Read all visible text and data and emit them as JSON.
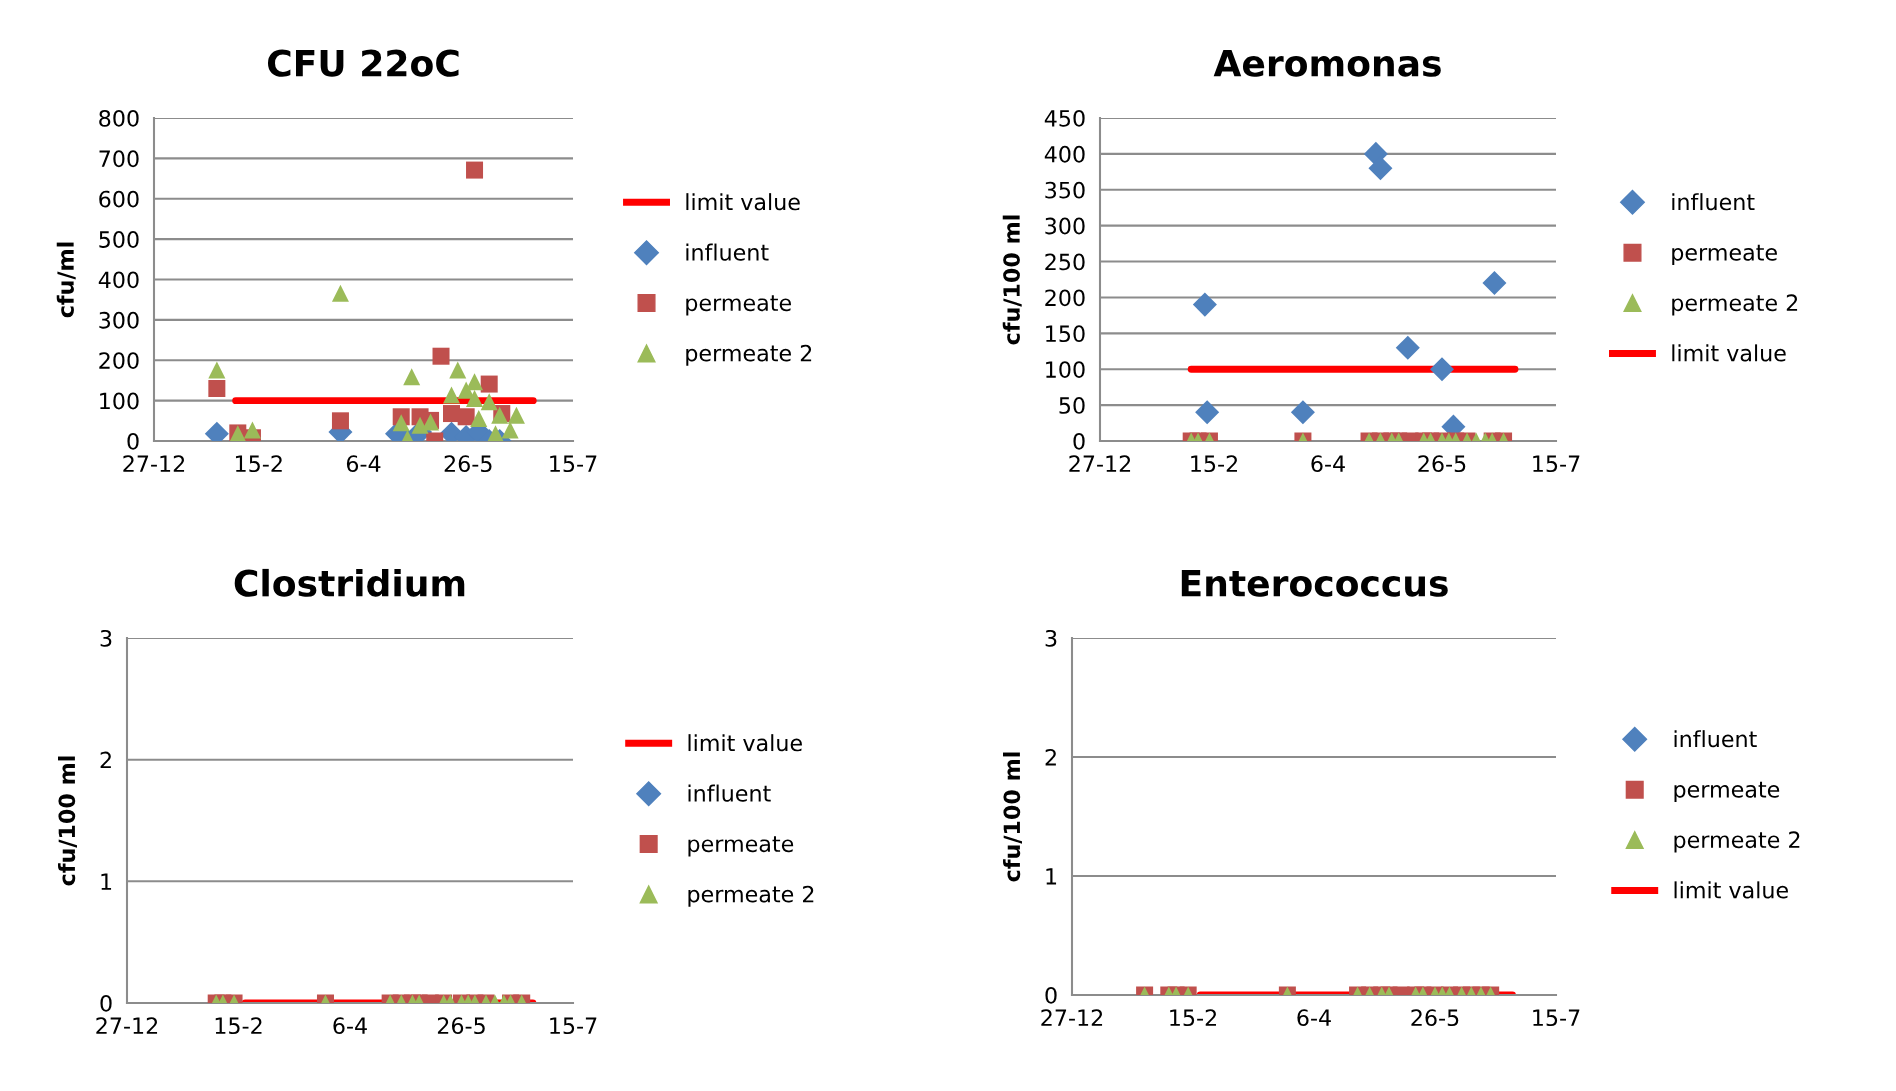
{
  "chart_data": [
    {
      "type": "scatter",
      "title": "CFU 22oC",
      "ylabel": "cfu/ml",
      "ylim": [
        0,
        800
      ],
      "yticks": [
        0,
        100,
        200,
        300,
        400,
        500,
        600,
        700,
        800
      ],
      "xlim": [
        "2012-12-27",
        "2013-07-15"
      ],
      "xticks": [
        {
          "value": "2012-12-27",
          "label": "27-12"
        },
        {
          "value": "2013-02-15",
          "label": "15-2"
        },
        {
          "value": "2013-04-06",
          "label": "6-4"
        },
        {
          "value": "2013-05-26",
          "label": "26-5"
        },
        {
          "value": "2013-07-15",
          "label": "15-7"
        }
      ],
      "grid": "y",
      "legend": "right",
      "series": [
        {
          "name": "limit value",
          "type": "line",
          "color": "#ff0000",
          "marker": "none",
          "x": [
            "2013-02-04",
            "2013-06-26"
          ],
          "values": [
            100,
            100
          ]
        },
        {
          "name": "influent",
          "color": "#4f81bd",
          "marker": "diamond",
          "x": [
            "2013-01-26",
            "2013-02-05",
            "2013-02-12",
            "2013-03-26",
            "2013-04-22",
            "2013-04-27",
            "2013-05-03",
            "2013-05-18",
            "2013-05-21",
            "2013-05-25",
            "2013-05-29",
            "2013-05-31",
            "2013-06-05",
            "2013-06-10"
          ],
          "values": [
            18,
            null,
            null,
            22,
            18,
            0,
            22,
            18,
            null,
            10,
            null,
            22,
            0,
            0
          ]
        },
        {
          "name": "permeate",
          "color": "#c0504d",
          "marker": "square",
          "x": [
            "2013-01-26",
            "2013-02-05",
            "2013-02-12",
            "2013-03-26",
            "2013-04-24",
            "2013-05-03",
            "2013-05-08",
            "2013-05-10",
            "2013-05-13",
            "2013-05-18",
            "2013-05-25",
            "2013-05-29",
            "2013-06-05",
            "2013-06-11"
          ],
          "values": [
            130,
            20,
            8,
            50,
            60,
            60,
            51,
            0,
            210,
            68,
            60,
            671,
            141,
            68
          ]
        },
        {
          "name": "permeate 2",
          "color": "#9bbb59",
          "marker": "triangle",
          "x": [
            "2013-01-26",
            "2013-02-05",
            "2013-02-12",
            "2013-03-26",
            "2013-04-24",
            "2013-04-27",
            "2013-04-29",
            "2013-05-03",
            "2013-05-08",
            "2013-05-18",
            "2013-05-21",
            "2013-05-25",
            "2013-05-29",
            "2013-05-29",
            "2013-05-31",
            "2013-06-05",
            "2013-06-08",
            "2013-06-10",
            "2013-06-15",
            "2013-06-18"
          ],
          "values": [
            176,
            18,
            27,
            366,
            45,
            6,
            159,
            39,
            47,
            114,
            176,
            126,
            147,
            105,
            56,
            97,
            18,
            64,
            27,
            64
          ]
        }
      ]
    },
    {
      "type": "scatter",
      "title": "Aeromonas",
      "ylabel": "cfu/100 ml",
      "ylim": [
        0,
        450
      ],
      "yticks": [
        0,
        50,
        100,
        150,
        200,
        250,
        300,
        350,
        400,
        450
      ],
      "xlim": [
        "2012-12-27",
        "2013-07-15"
      ],
      "xticks": [
        {
          "value": "2012-12-27",
          "label": "27-12"
        },
        {
          "value": "2013-02-15",
          "label": "15-2"
        },
        {
          "value": "2013-04-06",
          "label": "6-4"
        },
        {
          "value": "2013-05-26",
          "label": "26-5"
        },
        {
          "value": "2013-07-15",
          "label": "15-7"
        }
      ],
      "grid": "y",
      "legend": "right",
      "series": [
        {
          "name": "influent",
          "color": "#4f81bd",
          "marker": "diamond",
          "x": [
            "2013-02-11",
            "2013-02-12",
            "2013-03-26",
            "2013-04-27",
            "2013-04-29",
            "2013-05-11",
            "2013-05-26",
            "2013-05-31",
            "2013-06-18"
          ],
          "values": [
            190,
            40,
            40,
            400,
            380,
            130,
            100,
            20,
            220
          ]
        },
        {
          "name": "permeate",
          "color": "#c0504d",
          "marker": "square",
          "x": [
            "2013-02-05",
            "2013-02-08",
            "2013-02-13",
            "2013-03-26",
            "2013-04-24",
            "2013-04-29",
            "2013-05-04",
            "2013-05-07",
            "2013-05-12",
            "2013-05-18",
            "2013-05-21",
            "2013-05-26",
            "2013-05-29",
            "2013-06-01",
            "2013-06-06",
            "2013-06-10",
            "2013-06-14",
            "2013-06-17",
            "2013-06-22"
          ],
          "values": [
            0,
            0,
            0,
            0,
            0,
            0,
            0,
            0,
            0,
            0,
            0,
            0,
            null,
            0,
            0,
            null,
            null,
            0,
            0
          ]
        },
        {
          "name": "permeate 2",
          "color": "#9bbb59",
          "marker": "triangle",
          "x": [
            "2013-02-05",
            "2013-02-08",
            "2013-02-13",
            "2013-03-26",
            "2013-04-24",
            "2013-04-29",
            "2013-05-04",
            "2013-05-07",
            "2013-05-18",
            "2013-05-21",
            "2013-05-26",
            "2013-05-29",
            "2013-06-01",
            "2013-06-06",
            "2013-06-10",
            "2013-06-14",
            "2013-06-17",
            "2013-06-22"
          ],
          "values": [
            0,
            0,
            0,
            0,
            0,
            0,
            0,
            0,
            0,
            0,
            0,
            0,
            0,
            0,
            0,
            0,
            0,
            0
          ]
        },
        {
          "name": "limit value",
          "type": "line",
          "color": "#ff0000",
          "marker": "none",
          "x": [
            "2013-02-05",
            "2013-06-27"
          ],
          "values": [
            100,
            100
          ]
        }
      ]
    },
    {
      "type": "scatter",
      "title": "Clostridium",
      "ylabel": "cfu/100 ml",
      "ylim": [
        0,
        3
      ],
      "yticks": [
        0,
        1,
        2,
        3
      ],
      "xlim": [
        "2012-12-27",
        "2013-07-15"
      ],
      "xticks": [
        {
          "value": "2012-12-27",
          "label": "27-12"
        },
        {
          "value": "2013-02-15",
          "label": "15-2"
        },
        {
          "value": "2013-04-06",
          "label": "6-4"
        },
        {
          "value": "2013-05-26",
          "label": "26-5"
        },
        {
          "value": "2013-07-15",
          "label": "15-7"
        }
      ],
      "grid": "y",
      "legend": "right",
      "series": [
        {
          "name": "limit value",
          "type": "line",
          "color": "#ff0000",
          "marker": "none",
          "x": [
            "2013-02-18",
            "2013-06-27"
          ],
          "values": [
            0,
            0
          ]
        },
        {
          "name": "influent",
          "color": "#4f81bd",
          "marker": "diamond"
        },
        {
          "name": "permeate",
          "color": "#c0504d",
          "marker": "square",
          "x": [
            "2013-02-05",
            "2013-02-08",
            "2013-02-13",
            "2013-03-26",
            "2013-04-24",
            "2013-04-29",
            "2013-05-04",
            "2013-05-07",
            "2013-05-12",
            "2013-05-18",
            "2013-05-21",
            "2013-05-26",
            "2013-05-29",
            "2013-06-01",
            "2013-06-06",
            "2013-06-10",
            "2013-06-14",
            "2013-06-17",
            "2013-06-22"
          ],
          "values": [
            0,
            0,
            0,
            0,
            0,
            0,
            0,
            0,
            0,
            0,
            null,
            0,
            null,
            0,
            0,
            null,
            null,
            0,
            0
          ]
        },
        {
          "name": "permeate 2",
          "color": "#9bbb59",
          "marker": "triangle",
          "x": [
            "2013-02-05",
            "2013-02-08",
            "2013-02-13",
            "2013-03-26",
            "2013-04-24",
            "2013-04-29",
            "2013-05-04",
            "2013-05-07",
            "2013-05-18",
            "2013-05-21",
            "2013-05-26",
            "2013-05-29",
            "2013-06-01",
            "2013-06-06",
            "2013-06-10",
            "2013-06-14",
            "2013-06-17",
            "2013-06-22"
          ],
          "values": [
            0,
            0,
            0,
            0,
            0,
            0,
            0,
            0,
            0,
            0,
            0,
            0,
            0,
            0,
            0,
            0,
            0,
            0
          ]
        }
      ]
    },
    {
      "type": "scatter",
      "title": "Enterococcus",
      "ylabel": "cfu/100 ml",
      "ylim": [
        0,
        3
      ],
      "yticks": [
        0,
        1,
        2,
        3
      ],
      "xlim": [
        "2012-12-27",
        "2013-07-15"
      ],
      "xticks": [
        {
          "value": "2012-12-27",
          "label": "27-12"
        },
        {
          "value": "2013-02-15",
          "label": "15-2"
        },
        {
          "value": "2013-04-06",
          "label": "6-4"
        },
        {
          "value": "2013-05-26",
          "label": "26-5"
        },
        {
          "value": "2013-07-15",
          "label": "15-7"
        }
      ],
      "grid": "y",
      "legend": "right",
      "series": [
        {
          "name": "influent",
          "color": "#4f81bd",
          "marker": "diamond"
        },
        {
          "name": "permeate",
          "color": "#c0504d",
          "marker": "square",
          "x": [
            "2013-01-26",
            "2013-02-05",
            "2013-02-08",
            "2013-02-13",
            "2013-03-26",
            "2013-04-24",
            "2013-04-29",
            "2013-05-04",
            "2013-05-07",
            "2013-05-12",
            "2013-05-18",
            "2013-05-21",
            "2013-05-26",
            "2013-05-29",
            "2013-06-01",
            "2013-06-06",
            "2013-06-10",
            "2013-06-14",
            "2013-06-18"
          ],
          "values": [
            0,
            0,
            0,
            0,
            0,
            0,
            0,
            0,
            0,
            0,
            0,
            0,
            0,
            null,
            0,
            0,
            0,
            0,
            0
          ]
        },
        {
          "name": "permeate 2",
          "color": "#9bbb59",
          "marker": "triangle",
          "x": [
            "2013-01-26",
            "2013-02-05",
            "2013-02-08",
            "2013-02-13",
            "2013-03-26",
            "2013-04-24",
            "2013-04-29",
            "2013-05-04",
            "2013-05-07",
            "2013-05-18",
            "2013-05-21",
            "2013-05-26",
            "2013-05-29",
            "2013-06-01",
            "2013-06-06",
            "2013-06-10",
            "2013-06-14",
            "2013-06-18"
          ],
          "values": [
            0,
            0,
            0,
            0,
            0,
            0,
            0,
            0,
            0,
            0,
            0,
            0,
            0,
            0,
            0,
            0,
            0,
            0
          ]
        },
        {
          "name": "limit value",
          "type": "line",
          "color": "#ff0000",
          "marker": "none",
          "x": [
            "2013-02-18",
            "2013-06-27"
          ],
          "values": [
            0,
            0
          ]
        }
      ]
    }
  ]
}
